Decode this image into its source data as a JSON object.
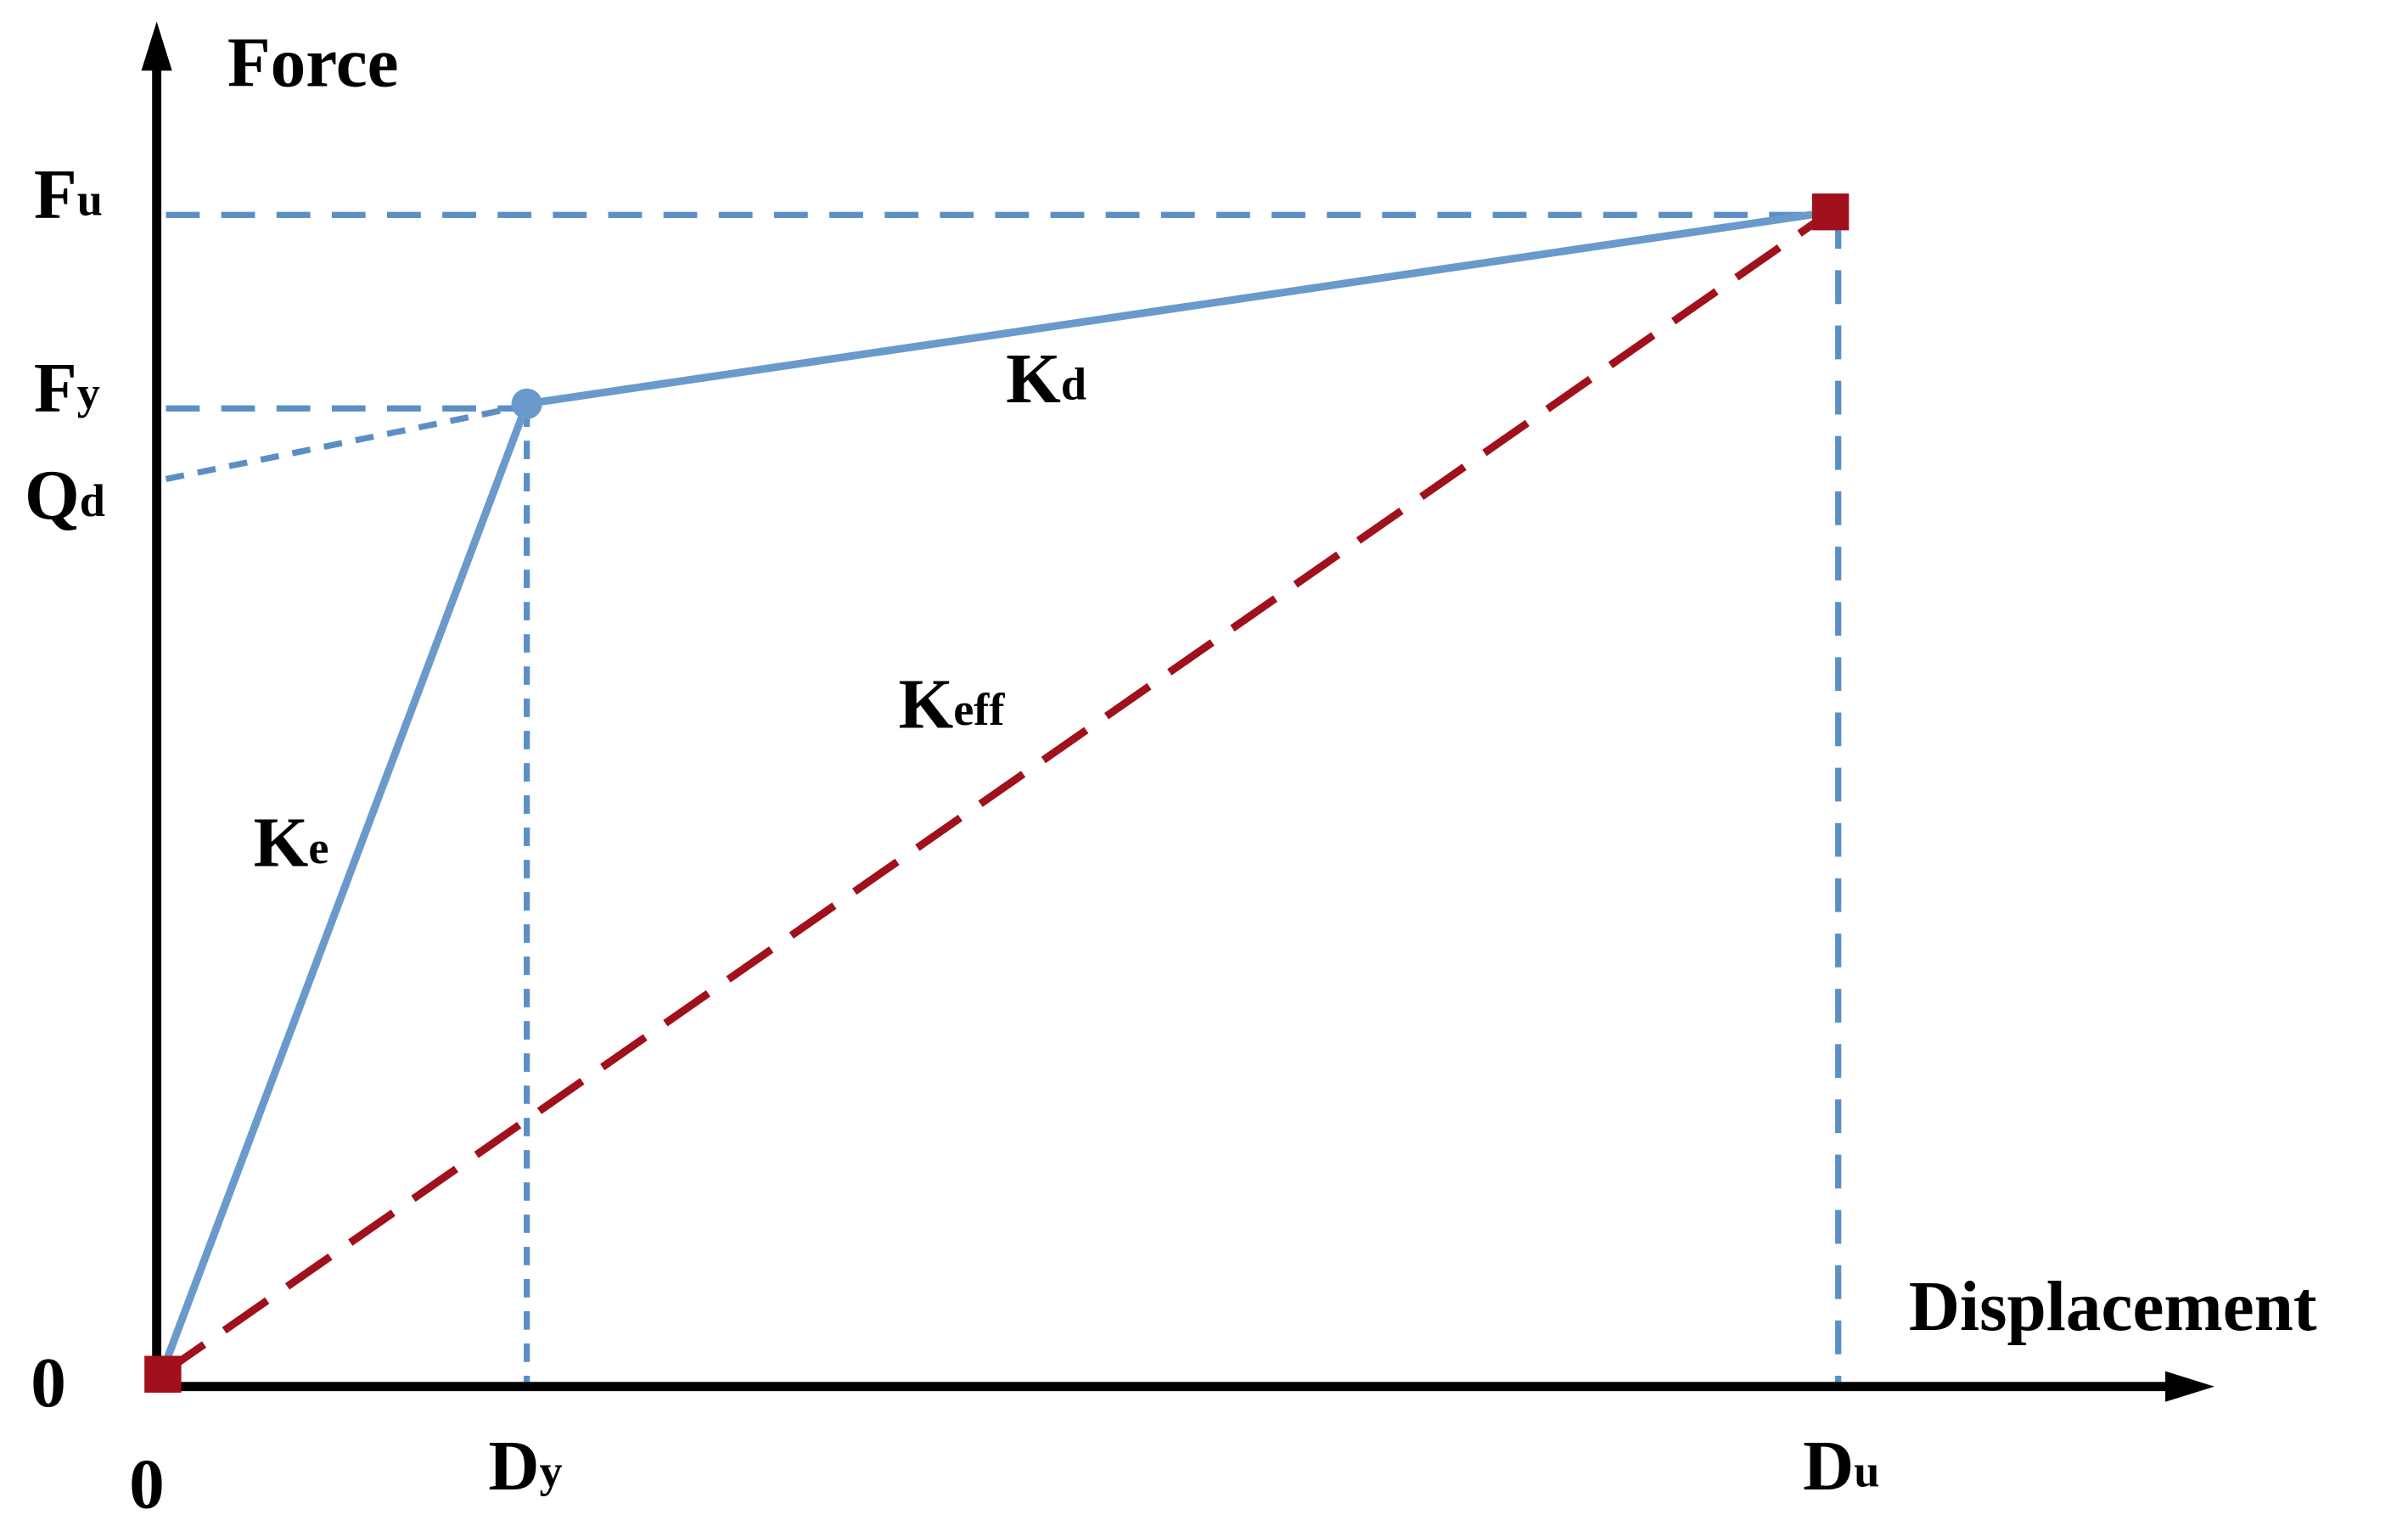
{
  "axes": {
    "y_label": "Force",
    "x_label": "Displacement",
    "y_origin": "0",
    "x_origin": "0"
  },
  "y_marks": [
    {
      "main": "F",
      "sub": "u"
    },
    {
      "main": "F",
      "sub": "y"
    },
    {
      "main": "Q",
      "sub": "d"
    }
  ],
  "x_marks": [
    {
      "main": "D",
      "sub": "y"
    },
    {
      "main": "D",
      "sub": "u"
    }
  ],
  "stiffness": [
    {
      "main": "K",
      "sub": "d"
    },
    {
      "main": "K",
      "sub": "eff"
    },
    {
      "main": "K",
      "sub": "e"
    }
  ]
}
